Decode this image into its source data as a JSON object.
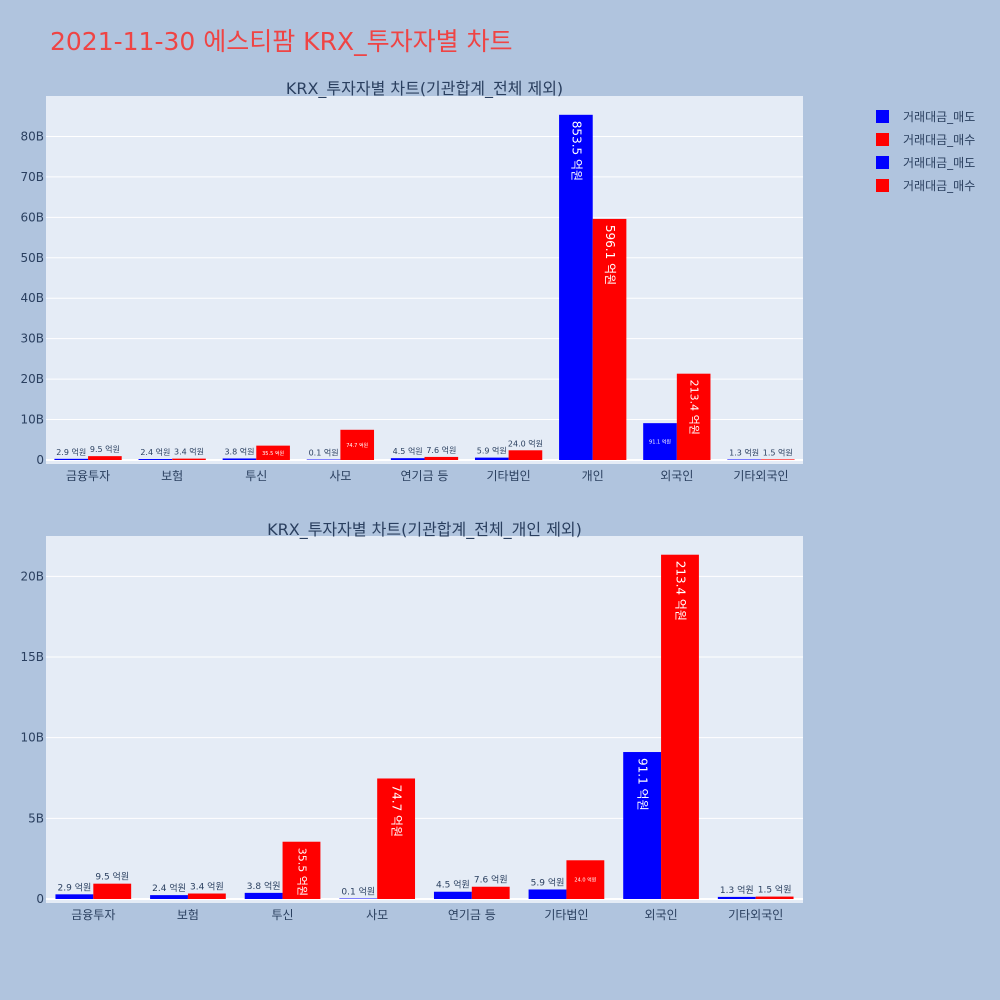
{
  "page": {
    "title": "2021-11-30 에스티팜 KRX_투자자별 차트"
  },
  "legend": {
    "items": [
      {
        "label": "거래대금_매도",
        "color": "#0000ff"
      },
      {
        "label": "거래대금_매수",
        "color": "#ff0000"
      },
      {
        "label": "거래대금_매도",
        "color": "#0000ff"
      },
      {
        "label": "거래대금_매수",
        "color": "#ff0000"
      }
    ]
  },
  "colors": {
    "sell": "#0000ff",
    "buy": "#ff0000",
    "plot_bg": "#e5ecf6",
    "text": "#2a3f5f"
  },
  "chart_data": [
    {
      "type": "bar",
      "title": "KRX_투자자별 차트(기관합계_전체 제외)",
      "categories": [
        "금융투자",
        "보험",
        "투신",
        "사모",
        "연기금 등",
        "기타법인",
        "개인",
        "외국인",
        "기타외국인"
      ],
      "ylim": [
        0,
        90
      ],
      "ytick_values": [
        0,
        10,
        20,
        30,
        40,
        50,
        60,
        70,
        80
      ],
      "ytick_labels": [
        "0",
        "10B",
        "20B",
        "30B",
        "40B",
        "50B",
        "60B",
        "70B",
        "80B"
      ],
      "grid": true,
      "series": [
        {
          "name": "거래대금_매도",
          "color": "#0000ff",
          "values": [
            0.29,
            0.24,
            0.38,
            0.01,
            0.45,
            0.59,
            85.35,
            9.11,
            0.13
          ],
          "labels": [
            "2.9 억원",
            "2.4 억원",
            "3.8 억원",
            "0.1 억원",
            "4.5 억원",
            "5.9 억원",
            "853.5 억원",
            "91.1 억원",
            "1.3 억원"
          ]
        },
        {
          "name": "거래대금_매수",
          "color": "#ff0000",
          "values": [
            0.95,
            0.34,
            3.55,
            7.47,
            0.76,
            2.4,
            59.61,
            21.34,
            0.15
          ],
          "labels": [
            "9.5 억원",
            "3.4 억원",
            "35.5 억원",
            "74.7 억원",
            "7.6 억원",
            "24.0 억원",
            "596.1 억원",
            "213.4 억원",
            "1.5 억원"
          ]
        }
      ]
    },
    {
      "type": "bar",
      "title": "KRX_투자자별 차트(기관합계_전체_개인 제외)",
      "categories": [
        "금융투자",
        "보험",
        "투신",
        "사모",
        "연기금 등",
        "기타법인",
        "외국인",
        "기타외국인"
      ],
      "ylim": [
        0,
        22.5
      ],
      "ytick_values": [
        0,
        5,
        10,
        15,
        20
      ],
      "ytick_labels": [
        "0",
        "5B",
        "10B",
        "15B",
        "20B"
      ],
      "grid": true,
      "series": [
        {
          "name": "거래대금_매도",
          "color": "#0000ff",
          "values": [
            0.29,
            0.24,
            0.38,
            0.01,
            0.45,
            0.59,
            9.11,
            0.13
          ],
          "labels": [
            "2.9 억원",
            "2.4 억원",
            "3.8 억원",
            "0.1 억원",
            "4.5 억원",
            "5.9 억원",
            "91.1 억원",
            "1.3 억원"
          ]
        },
        {
          "name": "거래대금_매수",
          "color": "#ff0000",
          "values": [
            0.95,
            0.34,
            3.55,
            7.47,
            0.76,
            2.4,
            21.34,
            0.15
          ],
          "labels": [
            "9.5 억원",
            "3.4 억원",
            "35.5 억원",
            "74.7 억원",
            "7.6 억원",
            "24.0 억원",
            "213.4 억원",
            "1.5 억원"
          ]
        }
      ]
    }
  ]
}
